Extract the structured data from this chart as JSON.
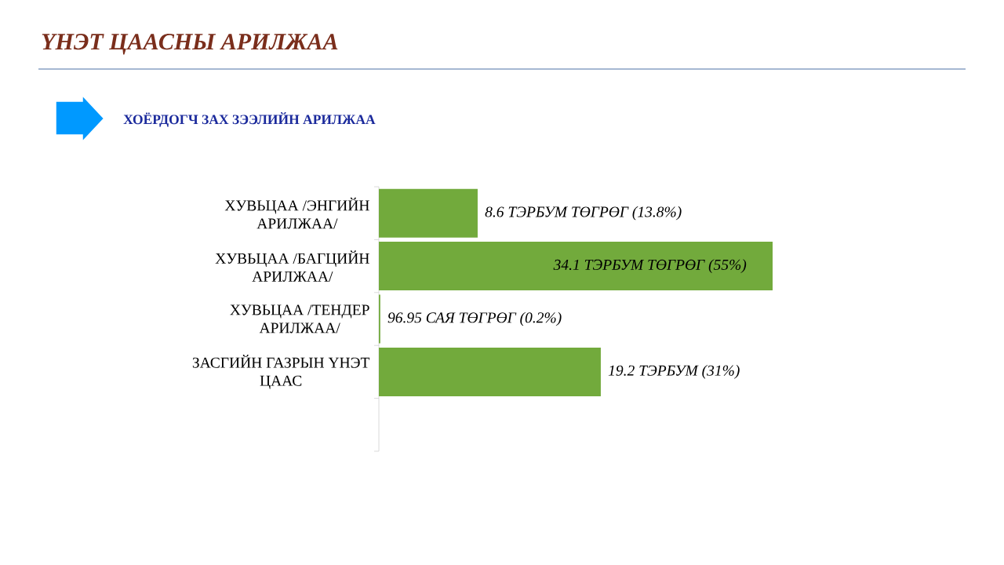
{
  "chart_data": {
    "type": "bar",
    "orientation": "horizontal",
    "title": "ҮНЭТ ЦААСНЫ АРИЛЖАА",
    "subtitle": "ХОЁРДОГЧ ЗАХ ЗЭЭЛИЙН АРИЛЖАА",
    "categories": [
      "ХУВЬЦАА /ЭНГИЙН АРИЛЖАА/",
      "ХУВЬЦАА /БАГЦИЙН АРИЛЖАА/",
      "ХУВЬЦАА /ТЕНДЕР АРИЛЖАА/",
      "ЗАСГИЙН ГАЗРЫН ҮНЭТ ЦААС",
      null
    ],
    "values": [
      13.8,
      55,
      0.2,
      31,
      null
    ],
    "color": "#72aa3c",
    "value_labels": [
      "8.6 ТЭРБУМ ТӨГРӨГ (13.8%)",
      "34.1 ТЭРБУМ ТӨГРӨГ (55%)",
      "96.95 САЯ ТӨГРӨГ (0.2%)",
      "19.2 ТЭРБУМ (31%)",
      null
    ],
    "tick_labels": "y"
  }
}
